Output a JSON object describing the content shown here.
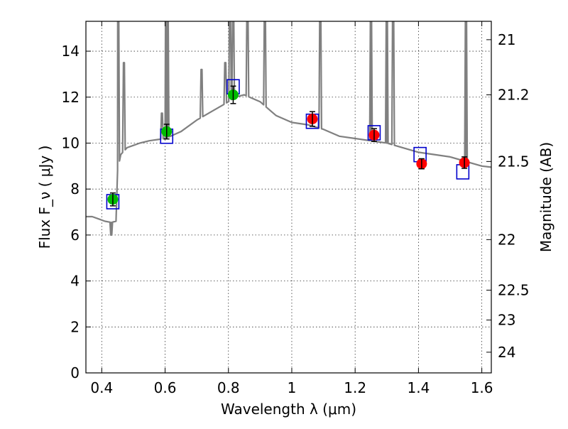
{
  "chart_data": {
    "type": "scatter",
    "xlabel": "Wavelength  λ (μm)",
    "ylabel": "Flux  F_ν  ( μJy )",
    "ylabel_right": "Magnitude (AB)",
    "xlim": [
      0.35,
      1.63
    ],
    "ylim": [
      0,
      15.3
    ],
    "grid": true,
    "x_ticks": [
      0.4,
      0.6,
      0.8,
      1.0,
      1.2,
      1.4,
      1.6
    ],
    "x_tick_labels": [
      "0.4",
      "0.6",
      "0.8",
      "1",
      "1.2",
      "1.4",
      "1.6"
    ],
    "y_ticks": [
      0,
      2,
      4,
      6,
      8,
      10,
      12,
      14
    ],
    "y_tick_labels": [
      "0",
      "2",
      "4",
      "6",
      "8",
      "10",
      "12",
      "14"
    ],
    "right_ticks": [
      {
        "label": "21",
        "flux": 14.5
      },
      {
        "label": "21.2",
        "flux": 12.1
      },
      {
        "label": "21.5",
        "flux": 9.2
      },
      {
        "label": "22",
        "flux": 5.8
      },
      {
        "label": "22.5",
        "flux": 3.6
      },
      {
        "label": "23",
        "flux": 2.3
      },
      {
        "label": "24",
        "flux": 0.9
      }
    ],
    "colors": {
      "spectrum": "#808080",
      "model_box": "#0000cc",
      "green_point": "#00bb00",
      "red_point": "#ff0000",
      "errorbar": "#000000"
    },
    "spectrum": {
      "continuum": [
        [
          0.35,
          6.8
        ],
        [
          0.37,
          6.8
        ],
        [
          0.39,
          6.7
        ],
        [
          0.41,
          6.6
        ],
        [
          0.43,
          6.55
        ],
        [
          0.445,
          6.6
        ],
        [
          0.45,
          8.8
        ],
        [
          0.46,
          9.5
        ],
        [
          0.48,
          9.8
        ],
        [
          0.5,
          9.9
        ],
        [
          0.52,
          10.0
        ],
        [
          0.55,
          10.1
        ],
        [
          0.6,
          10.2
        ],
        [
          0.65,
          10.5
        ],
        [
          0.7,
          11.0
        ],
        [
          0.75,
          11.4
        ],
        [
          0.8,
          11.8
        ],
        [
          0.82,
          12.0
        ],
        [
          0.85,
          12.1
        ],
        [
          0.9,
          11.8
        ],
        [
          0.95,
          11.2
        ],
        [
          1.0,
          10.9
        ],
        [
          1.05,
          10.8
        ],
        [
          1.1,
          10.6
        ],
        [
          1.15,
          10.3
        ],
        [
          1.2,
          10.2
        ],
        [
          1.25,
          10.1
        ],
        [
          1.3,
          10.0
        ],
        [
          1.35,
          9.8
        ],
        [
          1.4,
          9.6
        ],
        [
          1.45,
          9.5
        ],
        [
          1.5,
          9.4
        ],
        [
          1.55,
          9.2
        ],
        [
          1.6,
          9.0
        ],
        [
          1.63,
          8.95
        ]
      ],
      "emission_lines": [
        {
          "x": 0.43,
          "peak": 6.0
        },
        {
          "x": 0.452,
          "peak": 16.0
        },
        {
          "x": 0.47,
          "peak": 13.5
        },
        {
          "x": 0.59,
          "peak": 11.3
        },
        {
          "x": 0.603,
          "peak": 16.0
        },
        {
          "x": 0.608,
          "peak": 16.0
        },
        {
          "x": 0.715,
          "peak": 13.2
        },
        {
          "x": 0.79,
          "peak": 13.5
        },
        {
          "x": 0.805,
          "peak": 16.0
        },
        {
          "x": 0.815,
          "peak": 16.0
        },
        {
          "x": 0.86,
          "peak": 16.0
        },
        {
          "x": 0.915,
          "peak": 16.0
        },
        {
          "x": 1.09,
          "peak": 16.0
        },
        {
          "x": 1.25,
          "peak": 16.0
        },
        {
          "x": 1.3,
          "peak": 16.0
        },
        {
          "x": 1.32,
          "peak": 16.0
        },
        {
          "x": 1.55,
          "peak": 16.0
        }
      ]
    },
    "model_boxes": [
      {
        "x": 0.435,
        "flux": 7.45
      },
      {
        "x": 0.605,
        "flux": 10.3
      },
      {
        "x": 0.815,
        "flux": 12.45
      },
      {
        "x": 1.065,
        "flux": 10.95
      },
      {
        "x": 1.26,
        "flux": 10.45
      },
      {
        "x": 1.405,
        "flux": 9.5
      },
      {
        "x": 1.54,
        "flux": 8.75
      }
    ],
    "points": [
      {
        "x": 0.435,
        "y": 7.55,
        "err": 0.28,
        "color": "green"
      },
      {
        "x": 0.605,
        "y": 10.5,
        "err": 0.32,
        "color": "green"
      },
      {
        "x": 0.815,
        "y": 12.1,
        "err": 0.38,
        "color": "green"
      },
      {
        "x": 1.065,
        "y": 11.05,
        "err": 0.32,
        "color": "red"
      },
      {
        "x": 1.26,
        "y": 10.35,
        "err": 0.28,
        "color": "red"
      },
      {
        "x": 1.41,
        "y": 9.1,
        "err": 0.22,
        "color": "red"
      },
      {
        "x": 1.545,
        "y": 9.15,
        "err": 0.25,
        "color": "red"
      }
    ]
  }
}
